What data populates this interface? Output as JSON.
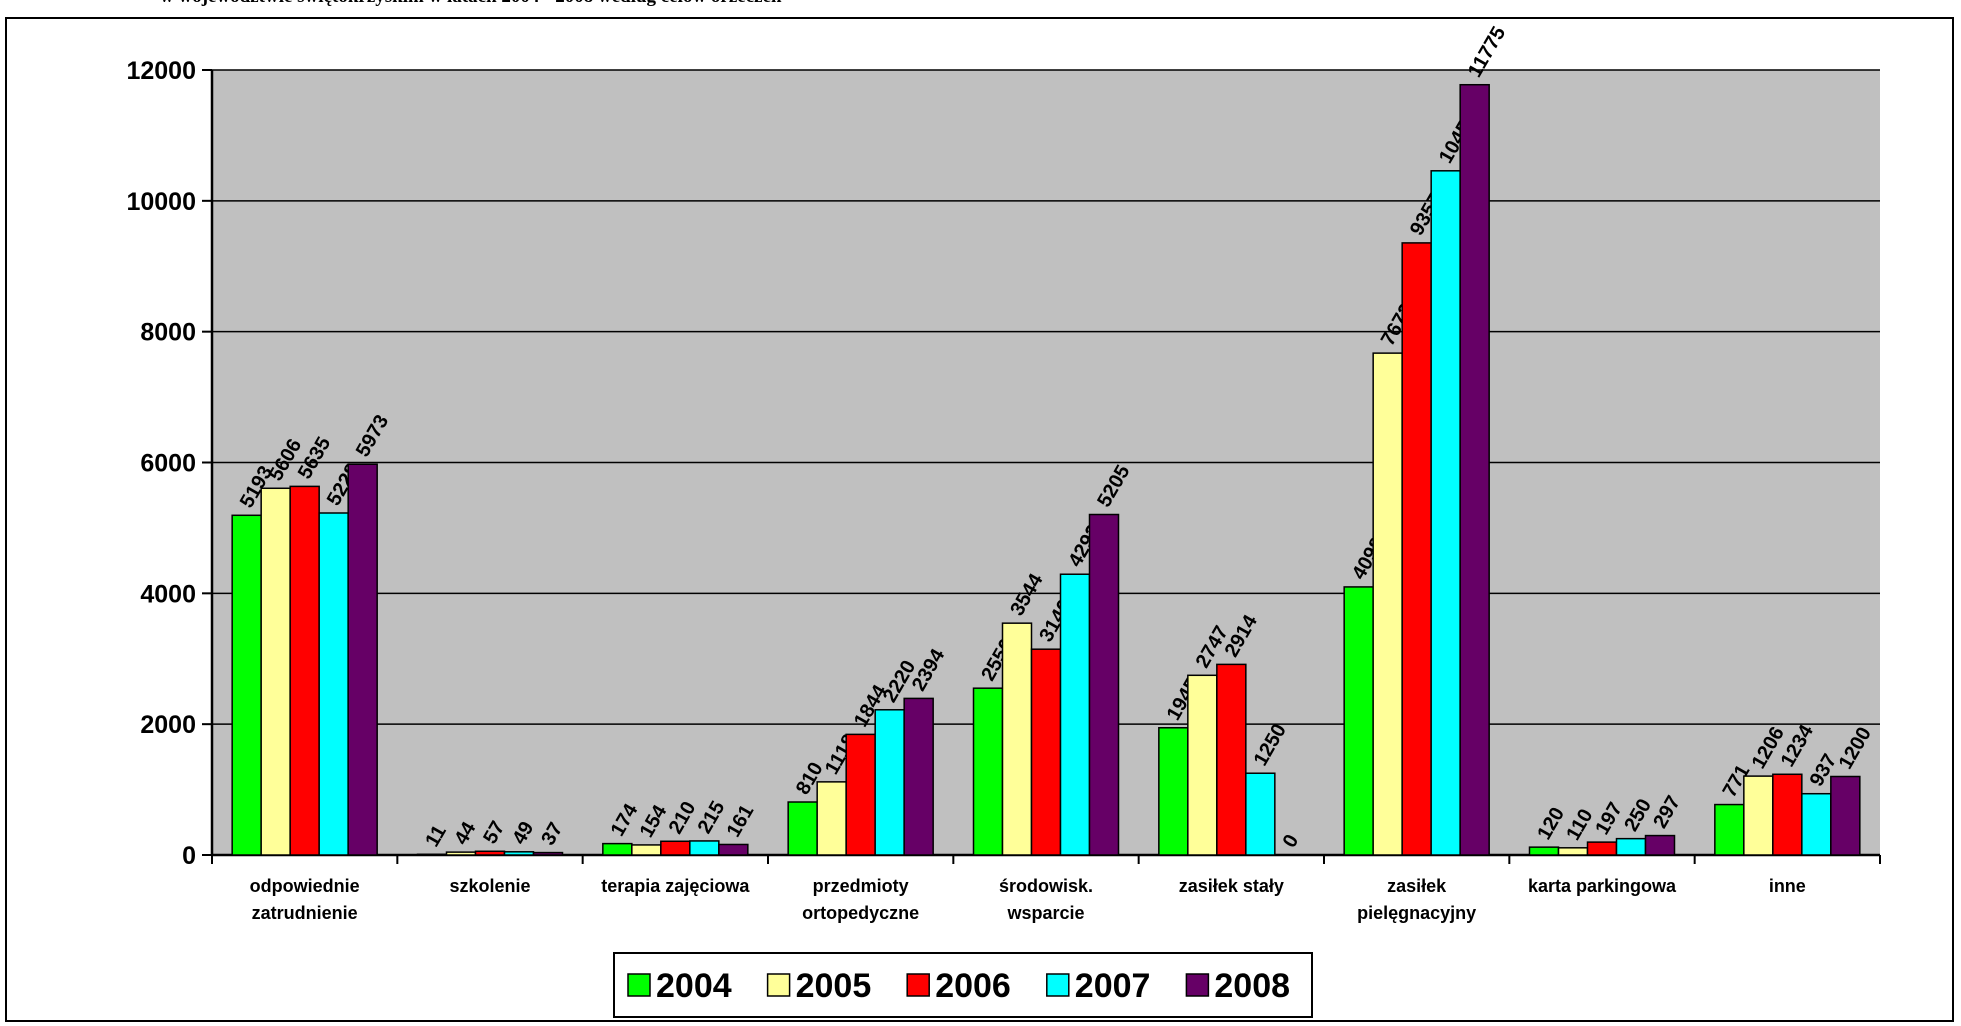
{
  "header": {
    "title": "w województwie świętokrzyskim w latach 2004 - 2008 według celów orzeczeń"
  },
  "chart_data": {
    "type": "bar",
    "title": "",
    "xlabel": "",
    "ylabel": "",
    "ylim": [
      0,
      12000
    ],
    "yticks": [
      0,
      2000,
      4000,
      6000,
      8000,
      10000,
      12000
    ],
    "grid": true,
    "legend_position": "bottom",
    "plot_background": "#c0c0c0",
    "categories": [
      [
        "odpowiednie",
        "zatrudnienie"
      ],
      [
        "szkolenie"
      ],
      [
        "terapia zajęciowa"
      ],
      [
        "przedmioty",
        "ortopedyczne"
      ],
      [
        "środowisk.",
        "wsparcie"
      ],
      [
        "zasiłek stały"
      ],
      [
        "zasiłek",
        "pielęgnacyjny"
      ],
      [
        "karta parkingowa"
      ],
      [
        "inne"
      ]
    ],
    "series": [
      {
        "name": "2004",
        "color": "#00ff00",
        "values": [
          5193,
          11,
          174,
          810,
          2550,
          1945,
          4098,
          120,
          771
        ]
      },
      {
        "name": "2005",
        "color": "#ffff99",
        "values": [
          5606,
          44,
          154,
          1118,
          3544,
          2747,
          7672,
          110,
          1206
        ]
      },
      {
        "name": "2006",
        "color": "#ff0000",
        "values": [
          5635,
          57,
          210,
          1844,
          3146,
          2914,
          9357,
          197,
          1234
        ]
      },
      {
        "name": "2007",
        "color": "#00ffff",
        "values": [
          5228,
          49,
          215,
          2220,
          4292,
          1250,
          10459,
          250,
          937
        ]
      },
      {
        "name": "2008",
        "color": "#660066",
        "values": [
          5973,
          37,
          161,
          2394,
          5205,
          0,
          11775,
          297,
          1200
        ]
      }
    ]
  }
}
